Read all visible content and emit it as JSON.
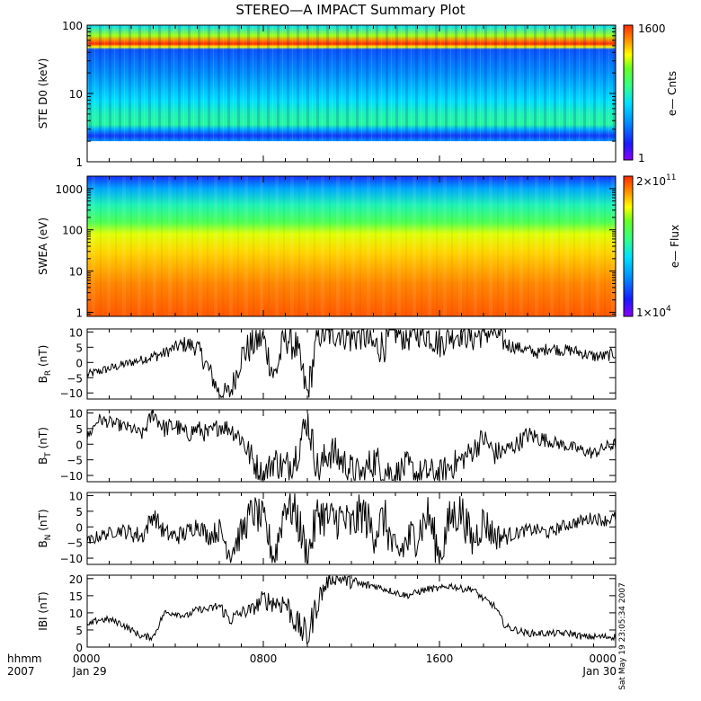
{
  "title": "STEREO—A IMPACT Summary Plot",
  "colors": {
    "ink": "#000000",
    "background": "#ffffff"
  },
  "chart_data": [
    {
      "type": "heatmap",
      "id": "ste",
      "ylabel": "STE D0 (keV)",
      "yscale": "log",
      "ylim": [
        1,
        100
      ],
      "ytick_values": [
        1,
        10,
        100
      ],
      "ytick_labels": [
        "1",
        "10",
        "100"
      ],
      "colorbar_label": "e— Cnts",
      "colorbar_range": [
        1,
        1600
      ],
      "colorbar_top_label": "1600",
      "colorbar_bottom_label": "1",
      "spectrum": [
        {
          "energy": 100,
          "level": 0.42
        },
        {
          "energy": 70,
          "level": 0.72
        },
        {
          "energy": 60,
          "level": 0.9
        },
        {
          "energy": 53,
          "level": 1.0
        },
        {
          "energy": 48,
          "level": 0.78
        },
        {
          "energy": 44,
          "level": 0.2
        },
        {
          "energy": 20,
          "level": 0.28
        },
        {
          "energy": 8,
          "level": 0.42
        },
        {
          "energy": 5,
          "level": 0.5
        },
        {
          "energy": 3.5,
          "level": 0.52
        },
        {
          "energy": 3,
          "level": 0.34
        },
        {
          "energy": 2.4,
          "level": 0.16
        },
        {
          "energy": 2,
          "level": 0.3
        }
      ]
    },
    {
      "type": "heatmap",
      "id": "swea",
      "ylabel": "SWEA (eV)",
      "yscale": "log",
      "ylim": [
        0.8,
        2000
      ],
      "ytick_values": [
        1,
        10,
        100,
        1000
      ],
      "ytick_labels": [
        "1",
        "10",
        "100",
        "1000"
      ],
      "colorbar_label": "e— Flux",
      "colorbar_range": [
        10000,
        200000000000
      ],
      "colorbar_top_label": "2×10",
      "colorbar_top_exp": "11",
      "colorbar_bottom_label": "1×10",
      "colorbar_bottom_exp": "4",
      "spectrum": [
        {
          "energy": 2000,
          "level": 0.15
        },
        {
          "energy": 1000,
          "level": 0.32
        },
        {
          "energy": 400,
          "level": 0.5
        },
        {
          "energy": 150,
          "level": 0.62
        },
        {
          "energy": 80,
          "level": 0.76
        },
        {
          "energy": 30,
          "level": 0.82
        },
        {
          "energy": 5,
          "level": 0.9
        },
        {
          "energy": 0.8,
          "level": 0.95
        }
      ]
    },
    {
      "type": "line",
      "id": "br",
      "ylabel": "B",
      "ylabel_sub": "R",
      "ylabel_unit": " (nT)",
      "ylim": [
        -12,
        11
      ],
      "ytick_values": [
        -10,
        -5,
        0,
        5,
        10
      ],
      "ytick_labels": [
        "−10",
        "−5",
        "0",
        "5",
        "10"
      ],
      "hours": [
        0,
        0.5,
        1,
        1.5,
        2,
        2.5,
        3,
        3.5,
        4,
        4.5,
        5,
        5.5,
        6,
        6.5,
        7,
        7.5,
        8,
        8.5,
        9,
        9.5,
        10,
        10.5,
        11,
        11.5,
        12,
        12.5,
        13,
        13.5,
        14,
        14.5,
        15,
        15.5,
        16,
        16.5,
        17,
        17.5,
        18,
        18.5,
        19,
        19.5,
        20,
        20.5,
        21,
        21.5,
        22,
        22.5,
        23,
        23.5,
        24
      ],
      "values": [
        -4,
        -3,
        -2,
        -1,
        0,
        1,
        2,
        3,
        5,
        6,
        5,
        -2,
        -10,
        -10,
        2,
        6,
        8,
        -5,
        9,
        5,
        -11,
        10,
        9,
        10,
        8,
        10,
        5,
        6,
        10,
        8,
        10,
        9,
        6,
        9,
        10,
        8,
        10,
        10,
        6,
        5,
        4,
        3,
        5,
        4,
        4,
        3,
        2,
        2,
        3
      ],
      "noise": [
        1.5,
        1.5,
        1.5,
        1.5,
        1.5,
        1.5,
        2,
        2,
        2,
        3,
        3,
        4,
        3,
        4,
        5,
        6,
        5,
        6,
        6,
        6,
        6,
        6,
        5,
        5,
        6,
        6,
        6,
        6,
        5,
        5,
        5,
        5,
        5,
        5,
        5,
        5,
        5,
        5,
        3,
        2,
        2,
        2,
        2,
        2,
        2,
        2,
        2,
        2,
        2
      ]
    },
    {
      "type": "line",
      "id": "bt",
      "ylabel": "B",
      "ylabel_sub": "T",
      "ylabel_unit": " (nT)",
      "ylim": [
        -12,
        11
      ],
      "ytick_values": [
        -10,
        -5,
        0,
        5,
        10
      ],
      "ytick_labels": [
        "−10",
        "−5",
        "0",
        "5",
        "10"
      ],
      "hours": [
        0,
        0.5,
        1,
        1.5,
        2,
        2.5,
        3,
        3.5,
        4,
        4.5,
        5,
        5.5,
        6,
        6.5,
        7,
        7.5,
        8,
        8.5,
        9,
        9.5,
        10,
        10.5,
        11,
        11.5,
        12,
        12.5,
        13,
        13.5,
        14,
        14.5,
        15,
        15.5,
        16,
        16.5,
        17,
        17.5,
        18,
        18.5,
        19,
        19.5,
        20,
        20.5,
        21,
        21.5,
        22,
        22.5,
        23,
        23.5,
        24
      ],
      "values": [
        2,
        8,
        7,
        6,
        5,
        3,
        10,
        5,
        6,
        3,
        5,
        3,
        6,
        5,
        2,
        -5,
        -10,
        -5,
        -8,
        -3,
        8,
        -9,
        -2,
        -5,
        -8,
        -10,
        -5,
        -8,
        -10,
        -7,
        -10,
        -9,
        -10,
        -7,
        -5,
        -2,
        2,
        -3,
        -2,
        0,
        3,
        2,
        1,
        0,
        -1,
        -2,
        -3,
        -1,
        0
      ],
      "noise": [
        2,
        2,
        2,
        2,
        2,
        2,
        3,
        3,
        3,
        3,
        3,
        3,
        3,
        3,
        4,
        5,
        4,
        5,
        6,
        6,
        6,
        6,
        6,
        6,
        5,
        5,
        6,
        6,
        5,
        5,
        5,
        5,
        5,
        5,
        4,
        4,
        4,
        4,
        3,
        3,
        3,
        3,
        2,
        2,
        2,
        2,
        2,
        2,
        2
      ]
    },
    {
      "type": "line",
      "id": "bn",
      "ylabel": "B",
      "ylabel_sub": "N",
      "ylabel_unit": " (nT)",
      "ylim": [
        -12,
        11
      ],
      "ytick_values": [
        -10,
        -5,
        0,
        5,
        10
      ],
      "ytick_labels": [
        "−10",
        "−5",
        "0",
        "5",
        "10"
      ],
      "hours": [
        0,
        0.5,
        1,
        1.5,
        2,
        2.5,
        3,
        3.5,
        4,
        4.5,
        5,
        5.5,
        6,
        6.5,
        7,
        7.5,
        8,
        8.5,
        9,
        9.5,
        10,
        10.5,
        11,
        11.5,
        12,
        12.5,
        13,
        13.5,
        14,
        14.5,
        15,
        15.5,
        16,
        16.5,
        17,
        17.5,
        18,
        18.5,
        19,
        19.5,
        20,
        20.5,
        21,
        21.5,
        22,
        22.5,
        23,
        23.5,
        24
      ],
      "values": [
        -5,
        -3,
        -2,
        -1,
        -2,
        -3,
        4,
        -2,
        -3,
        -2,
        1,
        -3,
        -1,
        -8,
        -2,
        5,
        2,
        -10,
        8,
        4,
        -10,
        5,
        2,
        3,
        0,
        5,
        -2,
        3,
        -10,
        -5,
        -2,
        4,
        -10,
        3,
        5,
        -5,
        2,
        -3,
        -3,
        -2,
        -1,
        -1,
        -2,
        0,
        1,
        2,
        3,
        2,
        3
      ],
      "noise": [
        2,
        2,
        2,
        2,
        3,
        3,
        3,
        3,
        3,
        3,
        3,
        3,
        4,
        5,
        5,
        6,
        6,
        6,
        7,
        7,
        7,
        7,
        7,
        7,
        7,
        7,
        7,
        7,
        7,
        7,
        7,
        7,
        7,
        7,
        7,
        6,
        6,
        5,
        3,
        2,
        2,
        2,
        2,
        2,
        2,
        2,
        2,
        2,
        2
      ]
    },
    {
      "type": "line",
      "id": "bmag",
      "ylabel": "IBI",
      "ylabel_unit": " (nT)",
      "ylim": [
        0,
        21
      ],
      "ytick_values": [
        0,
        5,
        10,
        15,
        20
      ],
      "ytick_labels": [
        "0",
        "5",
        "10",
        "15",
        "20"
      ],
      "hours": [
        0,
        0.5,
        1,
        1.5,
        2,
        2.5,
        3,
        3.5,
        4,
        4.5,
        5,
        5.5,
        6,
        6.5,
        7,
        7.5,
        8,
        8.5,
        9,
        9.5,
        10,
        10.5,
        11,
        11.5,
        12,
        12.5,
        13,
        13.5,
        14,
        14.5,
        15,
        15.5,
        16,
        16.5,
        17,
        17.5,
        18,
        18.5,
        19,
        19.5,
        20,
        20.5,
        21,
        21.5,
        22,
        22.5,
        23,
        23.5,
        24
      ],
      "values": [
        6,
        8,
        8,
        7,
        5,
        3,
        3,
        10,
        10,
        9,
        11,
        11,
        12,
        8,
        10,
        11,
        14,
        13,
        13,
        7,
        3,
        14,
        20,
        20,
        19,
        18,
        18,
        17,
        16,
        15,
        16,
        17,
        17,
        18,
        17,
        17,
        14,
        12,
        6,
        5,
        4,
        4,
        4,
        4,
        4,
        3,
        3,
        3,
        3
      ],
      "noise": [
        1,
        1,
        1,
        1,
        1,
        1,
        1,
        1,
        1,
        1,
        1,
        1,
        2,
        2,
        2,
        2,
        3,
        3,
        4,
        4,
        5,
        4,
        2,
        2,
        2,
        2,
        1,
        1,
        1,
        1,
        1,
        1,
        1,
        1,
        1,
        1,
        1,
        1,
        1,
        1,
        1,
        1,
        1,
        1,
        1,
        1,
        1,
        1,
        1
      ]
    }
  ],
  "xaxis": {
    "hhmm_label": "hhmm",
    "year_label": "2007",
    "ticks": [
      {
        "hour": 0,
        "label": "0000",
        "sublabel": "Jan 29"
      },
      {
        "hour": 8,
        "label": "0800",
        "sublabel": ""
      },
      {
        "hour": 16,
        "label": "1600",
        "sublabel": ""
      },
      {
        "hour": 24,
        "label": "0000",
        "sublabel": "Jan 30"
      }
    ],
    "range_hours": [
      0,
      24
    ]
  },
  "timestamp": "Sat May 19 23:05:34 2007"
}
